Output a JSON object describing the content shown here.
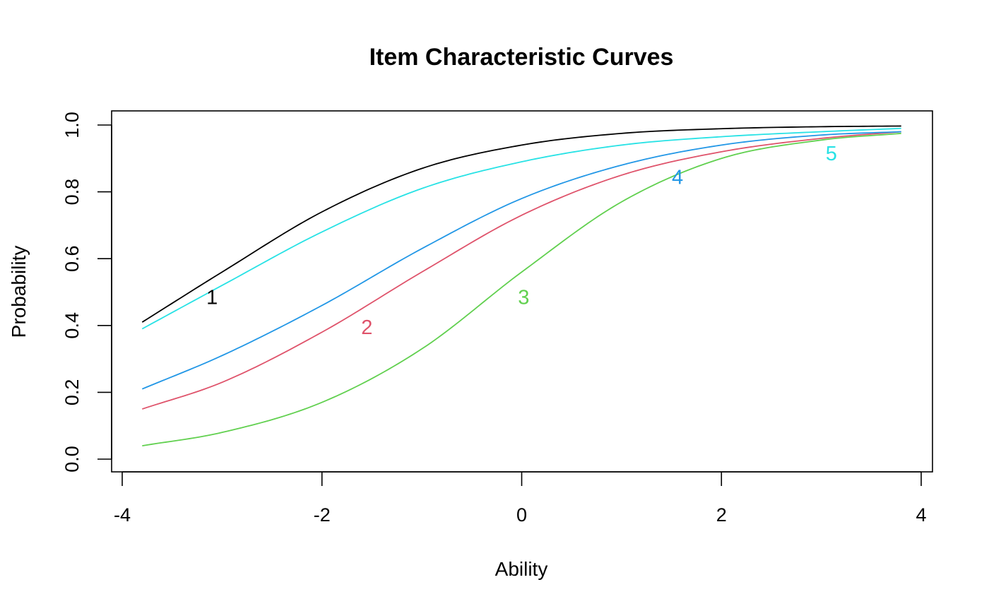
{
  "chart_data": {
    "type": "line",
    "title": "Item Characteristic Curves",
    "xlabel": "Ability",
    "ylabel": "Probability",
    "xlim": [
      -3.8,
      3.8
    ],
    "ylim": [
      0,
      1
    ],
    "x_ticks": [
      -4,
      -2,
      0,
      2,
      4
    ],
    "x_tick_labels": [
      "-4",
      "-2",
      "0",
      "2",
      "4"
    ],
    "y_ticks": [
      0,
      0.2,
      0.4,
      0.6,
      0.8,
      1
    ],
    "y_tick_labels": [
      "0.0",
      "0.2",
      "0.4",
      "0.6",
      "0.8",
      "1.0"
    ],
    "grid": false,
    "legend": "none",
    "x": [
      -3.8,
      -3.0,
      -2.0,
      -1.0,
      0.0,
      1.0,
      2.0,
      3.0,
      3.8
    ],
    "series": [
      {
        "label": "1",
        "color": "#000000",
        "values": [
          0.41,
          0.56,
          0.74,
          0.87,
          0.94,
          0.975,
          0.989,
          0.995,
          0.997
        ],
        "label_at": [
          -3.1,
          0.48
        ]
      },
      {
        "label": "2",
        "color": "#DF536B",
        "values": [
          0.15,
          0.23,
          0.38,
          0.56,
          0.73,
          0.85,
          0.92,
          0.96,
          0.98
        ],
        "label_at": [
          -1.55,
          0.39
        ]
      },
      {
        "label": "3",
        "color": "#61D04F",
        "values": [
          0.04,
          0.08,
          0.17,
          0.33,
          0.56,
          0.77,
          0.9,
          0.955,
          0.975
        ],
        "label_at": [
          0.02,
          0.48
        ]
      },
      {
        "label": "4",
        "color": "#2297E6",
        "values": [
          0.21,
          0.31,
          0.46,
          0.63,
          0.78,
          0.88,
          0.94,
          0.97,
          0.98
        ],
        "label_at": [
          1.56,
          0.84
        ]
      },
      {
        "label": "5",
        "color": "#28E2E5",
        "values": [
          0.39,
          0.52,
          0.68,
          0.81,
          0.89,
          0.94,
          0.965,
          0.98,
          0.99
        ],
        "label_at": [
          3.1,
          0.91
        ]
      }
    ]
  }
}
